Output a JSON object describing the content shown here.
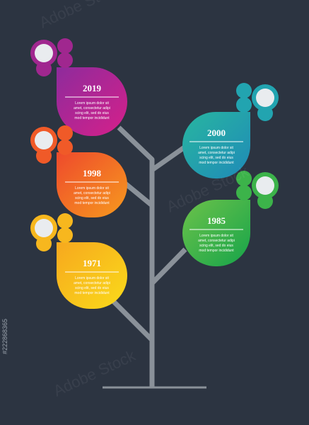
{
  "nodes": [
    {
      "year": "2019",
      "lines": [
        "Lorem ipsum dolor sit",
        "amet, consectetur adipi",
        "scing elit, sed do eius",
        "mod tempor incididunt"
      ]
    },
    {
      "year": "2000",
      "lines": [
        "Lorem ipsum dolor sit",
        "amet, consectetur adipi",
        "scing elit, sed do eius",
        "mod tempor incididunt"
      ]
    },
    {
      "year": "1998",
      "lines": [
        "Lorem ipsum dolor sit",
        "amet, consectetur adipi",
        "scing elit, sed do eius",
        "mod tempor incididunt"
      ]
    },
    {
      "year": "1985",
      "lines": [
        "Lorem ipsum dolor sit",
        "amet, consectetur adipi",
        "scing elit, sed do eius",
        "mod tempor incididunt"
      ]
    },
    {
      "year": "1971",
      "lines": [
        "Lorem ipsum dolor sit",
        "amet, consectetur adipi",
        "scing elit, sed do eius",
        "mod tempor incididunt"
      ]
    }
  ],
  "watermark": "Adobe Stock",
  "stock_id": "#222868365"
}
